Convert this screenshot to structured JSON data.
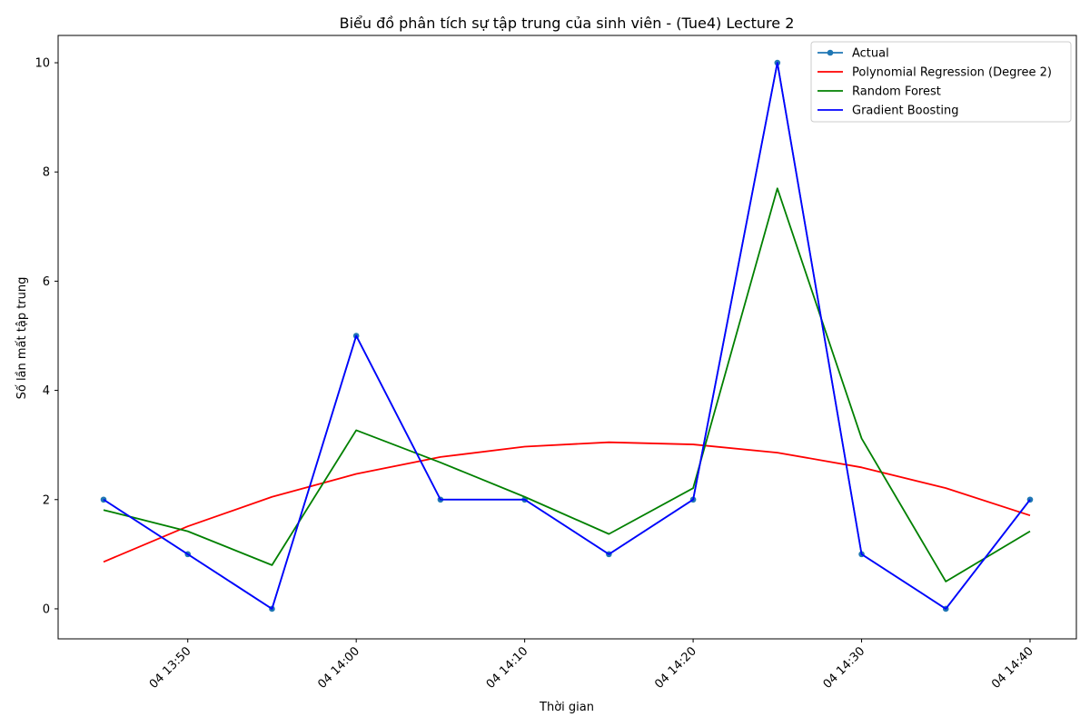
{
  "chart_data": {
    "type": "line",
    "title": "Biểu đồ phân tích sự tập trung của sinh viên - (Tue4) Lecture 2",
    "xlabel": "Thời gian",
    "ylabel": "Số lần mất tập trung",
    "x": [
      "04 13:45",
      "04 13:50",
      "04 13:55",
      "04 14:00",
      "04 14:05",
      "04 14:10",
      "04 14:15",
      "04 14:20",
      "04 14:25",
      "04 14:30",
      "04 14:35",
      "04 14:40"
    ],
    "x_ticks": [
      "04 13:50",
      "04 14:00",
      "04 14:10",
      "04 14:20",
      "04 14:30",
      "04 14:40"
    ],
    "y_ticks": [
      0,
      2,
      4,
      6,
      8,
      10
    ],
    "ylim": [
      -0.55,
      10.5
    ],
    "grid": false,
    "legend_position": "top-right",
    "series": [
      {
        "name": "Actual",
        "color": "#1f77b4",
        "marker": true,
        "values": [
          2,
          1,
          0,
          5,
          2,
          2,
          1,
          2,
          10,
          1,
          0,
          2
        ]
      },
      {
        "name": "Polynomial Regression (Degree 2)",
        "color": "#ff0000",
        "marker": false,
        "values": [
          0.86,
          1.51,
          2.05,
          2.47,
          2.78,
          2.97,
          3.05,
          3.01,
          2.86,
          2.59,
          2.21,
          1.71
        ]
      },
      {
        "name": "Random Forest",
        "color": "#008000",
        "marker": false,
        "values": [
          1.81,
          1.42,
          0.8,
          3.27,
          2.68,
          2.05,
          1.37,
          2.21,
          7.7,
          3.12,
          0.5,
          1.42
        ]
      },
      {
        "name": "Gradient Boosting",
        "color": "#0000ff",
        "marker": false,
        "values": [
          2,
          1,
          0,
          5,
          2,
          2,
          1,
          2,
          10,
          1,
          0,
          2
        ]
      }
    ]
  }
}
